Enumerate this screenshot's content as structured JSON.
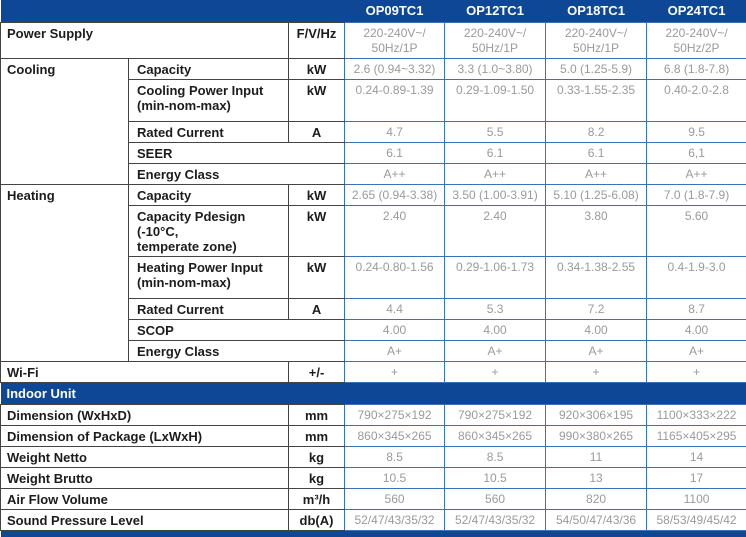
{
  "colors": {
    "navy": "#0d4795",
    "blue_border": "#3a72b8",
    "dark_border": "#444444",
    "value_gray": "#9a9a9a",
    "label_dark": "#1c1c1c"
  },
  "header": {
    "models": [
      "OP09TC1",
      "OP12TC1",
      "OP18TC1",
      "OP24TC1"
    ]
  },
  "table": {
    "rows": [
      {
        "label": "Power Supply",
        "labelspan": 2,
        "unit": "F/V/Hz",
        "h": "med",
        "values": [
          "220-240V~/\n50Hz/1P",
          "220-240V~/\n50Hz/1P",
          "220-240V~/\n50Hz/1P",
          "220-240V~/\n50Hz/2P"
        ]
      },
      {
        "group": {
          "label": "Cooling",
          "span": 5
        },
        "label": "Capacity",
        "labelspan": 1,
        "unit": "kW",
        "values": [
          "2.6 (0.94~3.32)",
          "3.3 (1.0~3.80)",
          "5.0 (1.25-5.9)",
          "6.8 (1.8-7.8)"
        ]
      },
      {
        "label": "Cooling Power Input\n(min-nom-max)",
        "labelspan": 1,
        "unit": "kW",
        "h": "tall",
        "values": [
          "0.24-0.89-1.39",
          "0.29-1.09-1.50",
          "0.33-1.55-2.35",
          "0.40-2.0-2.8"
        ]
      },
      {
        "label": "Rated Current",
        "labelspan": 1,
        "unit": "A",
        "values": [
          "4.7",
          "5.5",
          "8.2",
          "9.5"
        ]
      },
      {
        "label": "SEER",
        "labelspan": 1,
        "unit": null,
        "values": [
          "6.1",
          "6.1",
          "6.1",
          "6,1"
        ]
      },
      {
        "label": "Energy Class",
        "labelspan": 1,
        "unit": null,
        "values": [
          "A++",
          "A++",
          "A++",
          "A++"
        ]
      },
      {
        "group": {
          "label": "Heating",
          "span": 6
        },
        "label": "Capacity",
        "labelspan": 1,
        "unit": "kW",
        "values": [
          "2.65 (0.94-3.38)",
          "3.50 (1.00-3.91)",
          "5.10 (1.25-6.08)",
          "7.0 (1.8-7.9)"
        ]
      },
      {
        "label": "Capacity Pdesign (-10°C,\ntemperate zone)",
        "labelspan": 1,
        "unit": "kW",
        "h": "med",
        "values": [
          "2.40",
          "2.40",
          "3.80",
          "5.60"
        ]
      },
      {
        "label": "Heating Power Input\n(min-nom-max)",
        "labelspan": 1,
        "unit": "kW",
        "h": "tall",
        "values": [
          "0.24-0.80-1.56",
          "0.29-1.06-1.73",
          "0.34-1.38-2.55",
          "0.4-1.9-3.0"
        ]
      },
      {
        "label": "Rated Current",
        "labelspan": 1,
        "unit": "A",
        "values": [
          "4.4",
          "5.3",
          "7.2",
          "8.7"
        ]
      },
      {
        "label": "SCOP",
        "labelspan": 1,
        "unit": null,
        "values": [
          "4.00",
          "4.00",
          "4.00",
          "4.00"
        ]
      },
      {
        "label": "Energy Class",
        "labelspan": 1,
        "unit": null,
        "values": [
          "A+",
          "A+",
          "A+",
          "A+"
        ]
      },
      {
        "label": "Wi-Fi",
        "labelspan": 2,
        "unit": "+/-",
        "values": [
          "+",
          "+",
          "+",
          "+"
        ]
      },
      {
        "type": "section",
        "label": "Indoor Unit"
      },
      {
        "label": "Dimension (WxHxD)",
        "labelspan": 2,
        "unit": "mm",
        "values": [
          "790×275×192",
          "790×275×192",
          "920×306×195",
          "1100×333×222"
        ]
      },
      {
        "label": "Dimension of Package (LxWxH)",
        "labelspan": 2,
        "unit": "mm",
        "values": [
          "860×345×265",
          "860×345×265",
          "990×380×265",
          "1165×405×295"
        ]
      },
      {
        "label": "Weight Netto",
        "labelspan": 2,
        "unit": "kg",
        "values": [
          "8.5",
          "8.5",
          "11",
          "14"
        ]
      },
      {
        "label": "Weight Brutto",
        "labelspan": 2,
        "unit": "kg",
        "values": [
          "10.5",
          "10.5",
          "13",
          "17"
        ]
      },
      {
        "label": "Air Flow Volume",
        "labelspan": 2,
        "unit": "m³/h",
        "values": [
          "560",
          "560",
          "820",
          "1100"
        ]
      },
      {
        "label": "Sound Pressure Level",
        "labelspan": 2,
        "unit": "db(A)",
        "values": [
          "52/47/43/35/32",
          "52/47/43/35/32",
          "54/50/47/43/36",
          "58/53/49/45/42"
        ]
      },
      {
        "type": "bar"
      }
    ]
  }
}
